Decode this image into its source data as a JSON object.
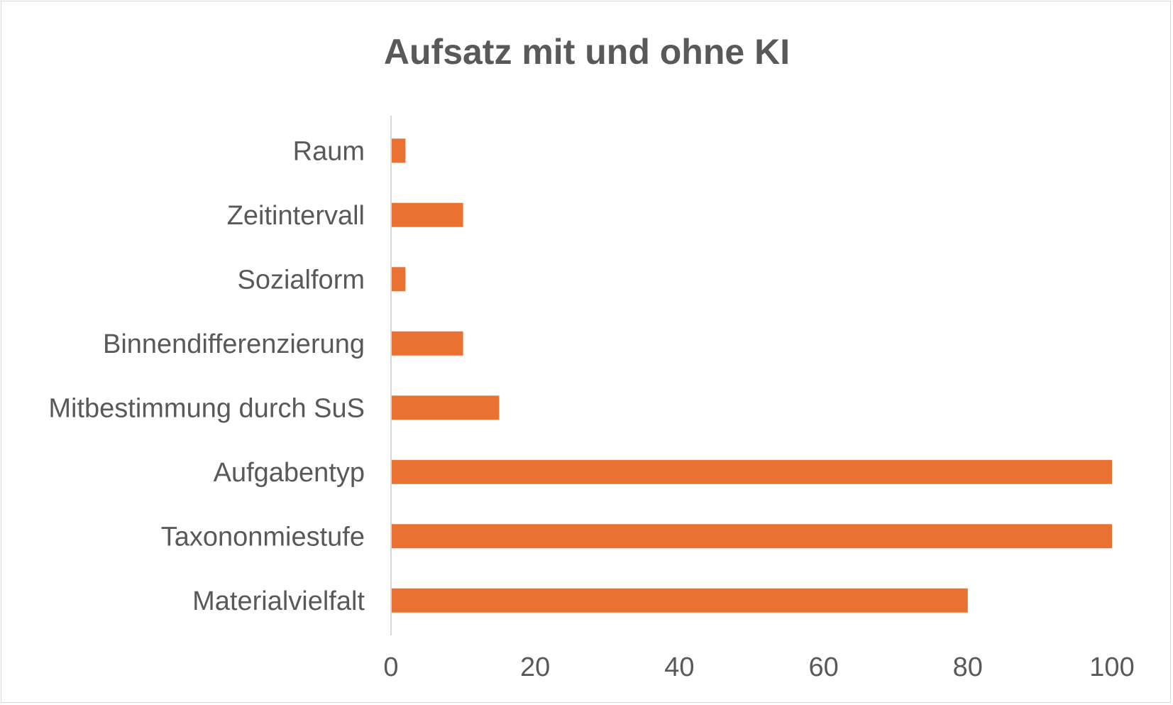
{
  "chart_data": {
    "type": "bar",
    "orientation": "horizontal",
    "title": "Aufsatz mit und ohne KI",
    "categories": [
      "Raum",
      "Zeitintervall",
      "Sozialform",
      "Binnendifferenzierung",
      "Mitbestimmung durch SuS",
      "Aufgabentyp",
      "Taxononmiestufe",
      "Materialvielfalt"
    ],
    "values": [
      2,
      10,
      2,
      10,
      15,
      100,
      100,
      80
    ],
    "xlim": [
      0,
      100
    ],
    "xticks": [
      "0",
      "20",
      "40",
      "60",
      "80",
      "100"
    ],
    "grid": false,
    "legend": "none",
    "bar_color": "#E97132",
    "axis_color": "#D9D9D9",
    "text_color": "#595959"
  }
}
